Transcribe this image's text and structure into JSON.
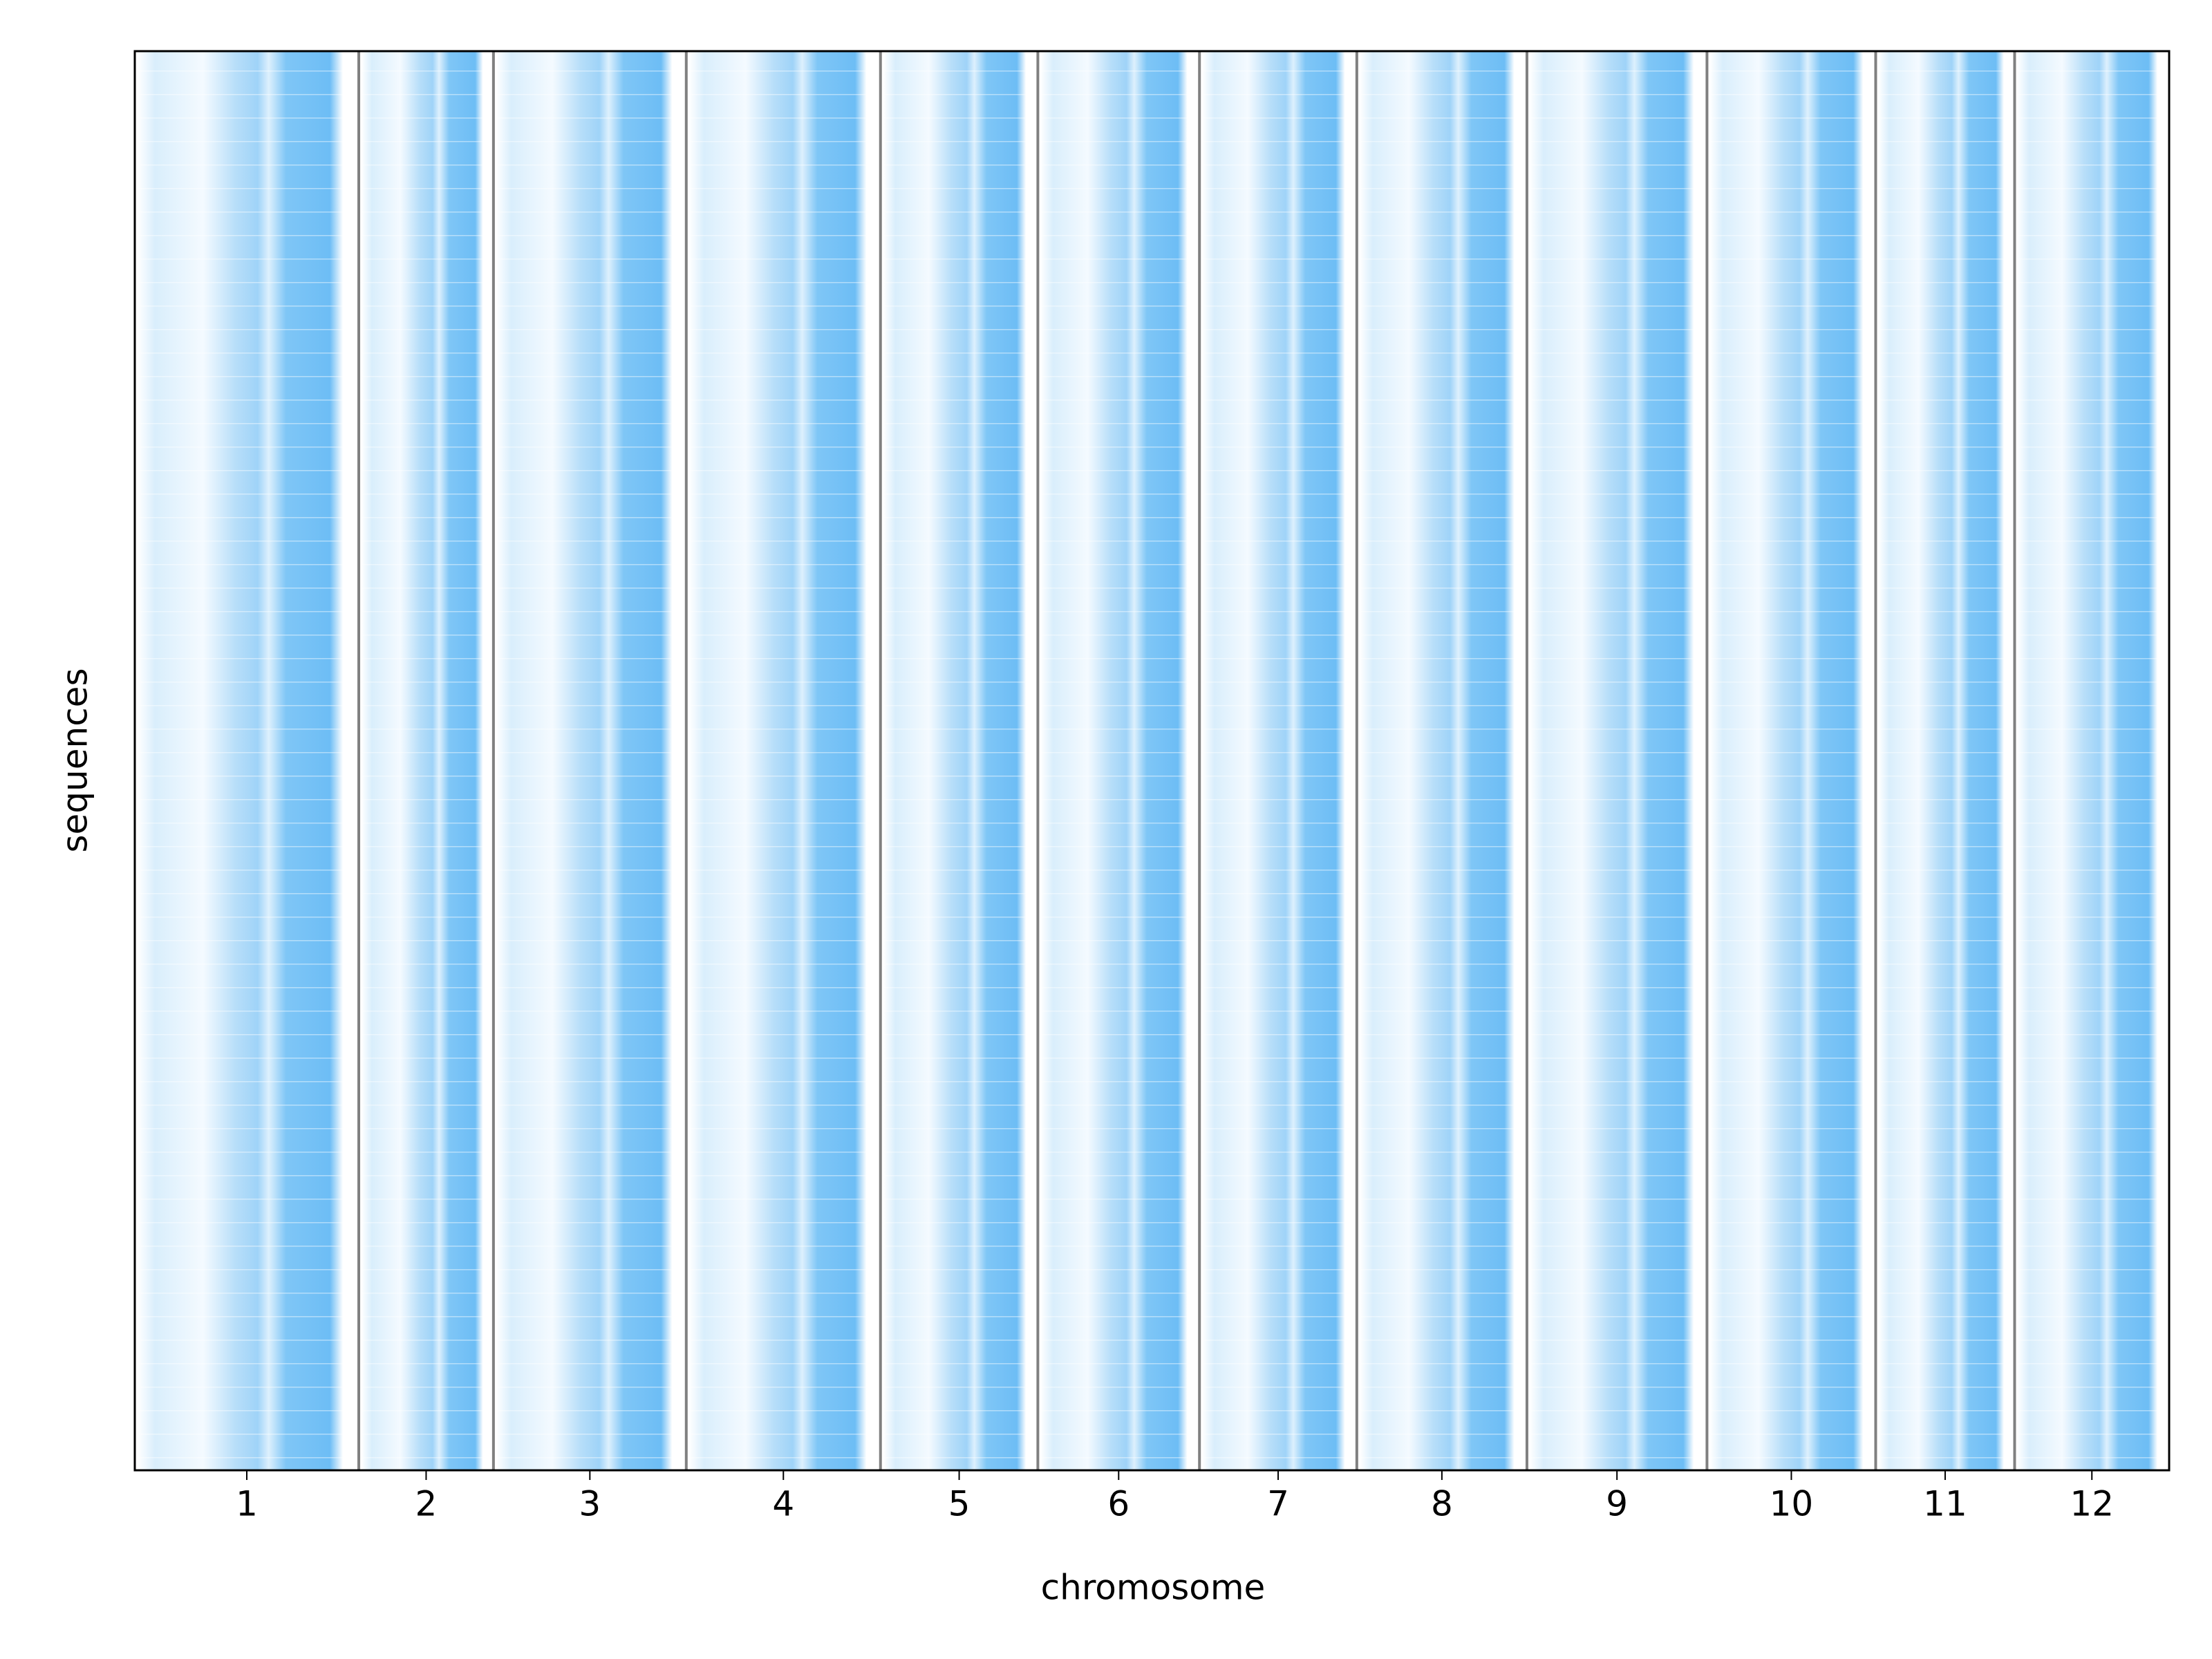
{
  "chart_data": {
    "type": "panels",
    "xlabel": "chromosome",
    "ylabel": "sequences",
    "categories": [
      "1",
      "2",
      "3",
      "4",
      "5",
      "6",
      "7",
      "8",
      "9",
      "10",
      "11",
      "12"
    ],
    "values": [
      158,
      95,
      136,
      137,
      111,
      114,
      111,
      120,
      127,
      119,
      98,
      109
    ],
    "color": "#74c0f5"
  }
}
